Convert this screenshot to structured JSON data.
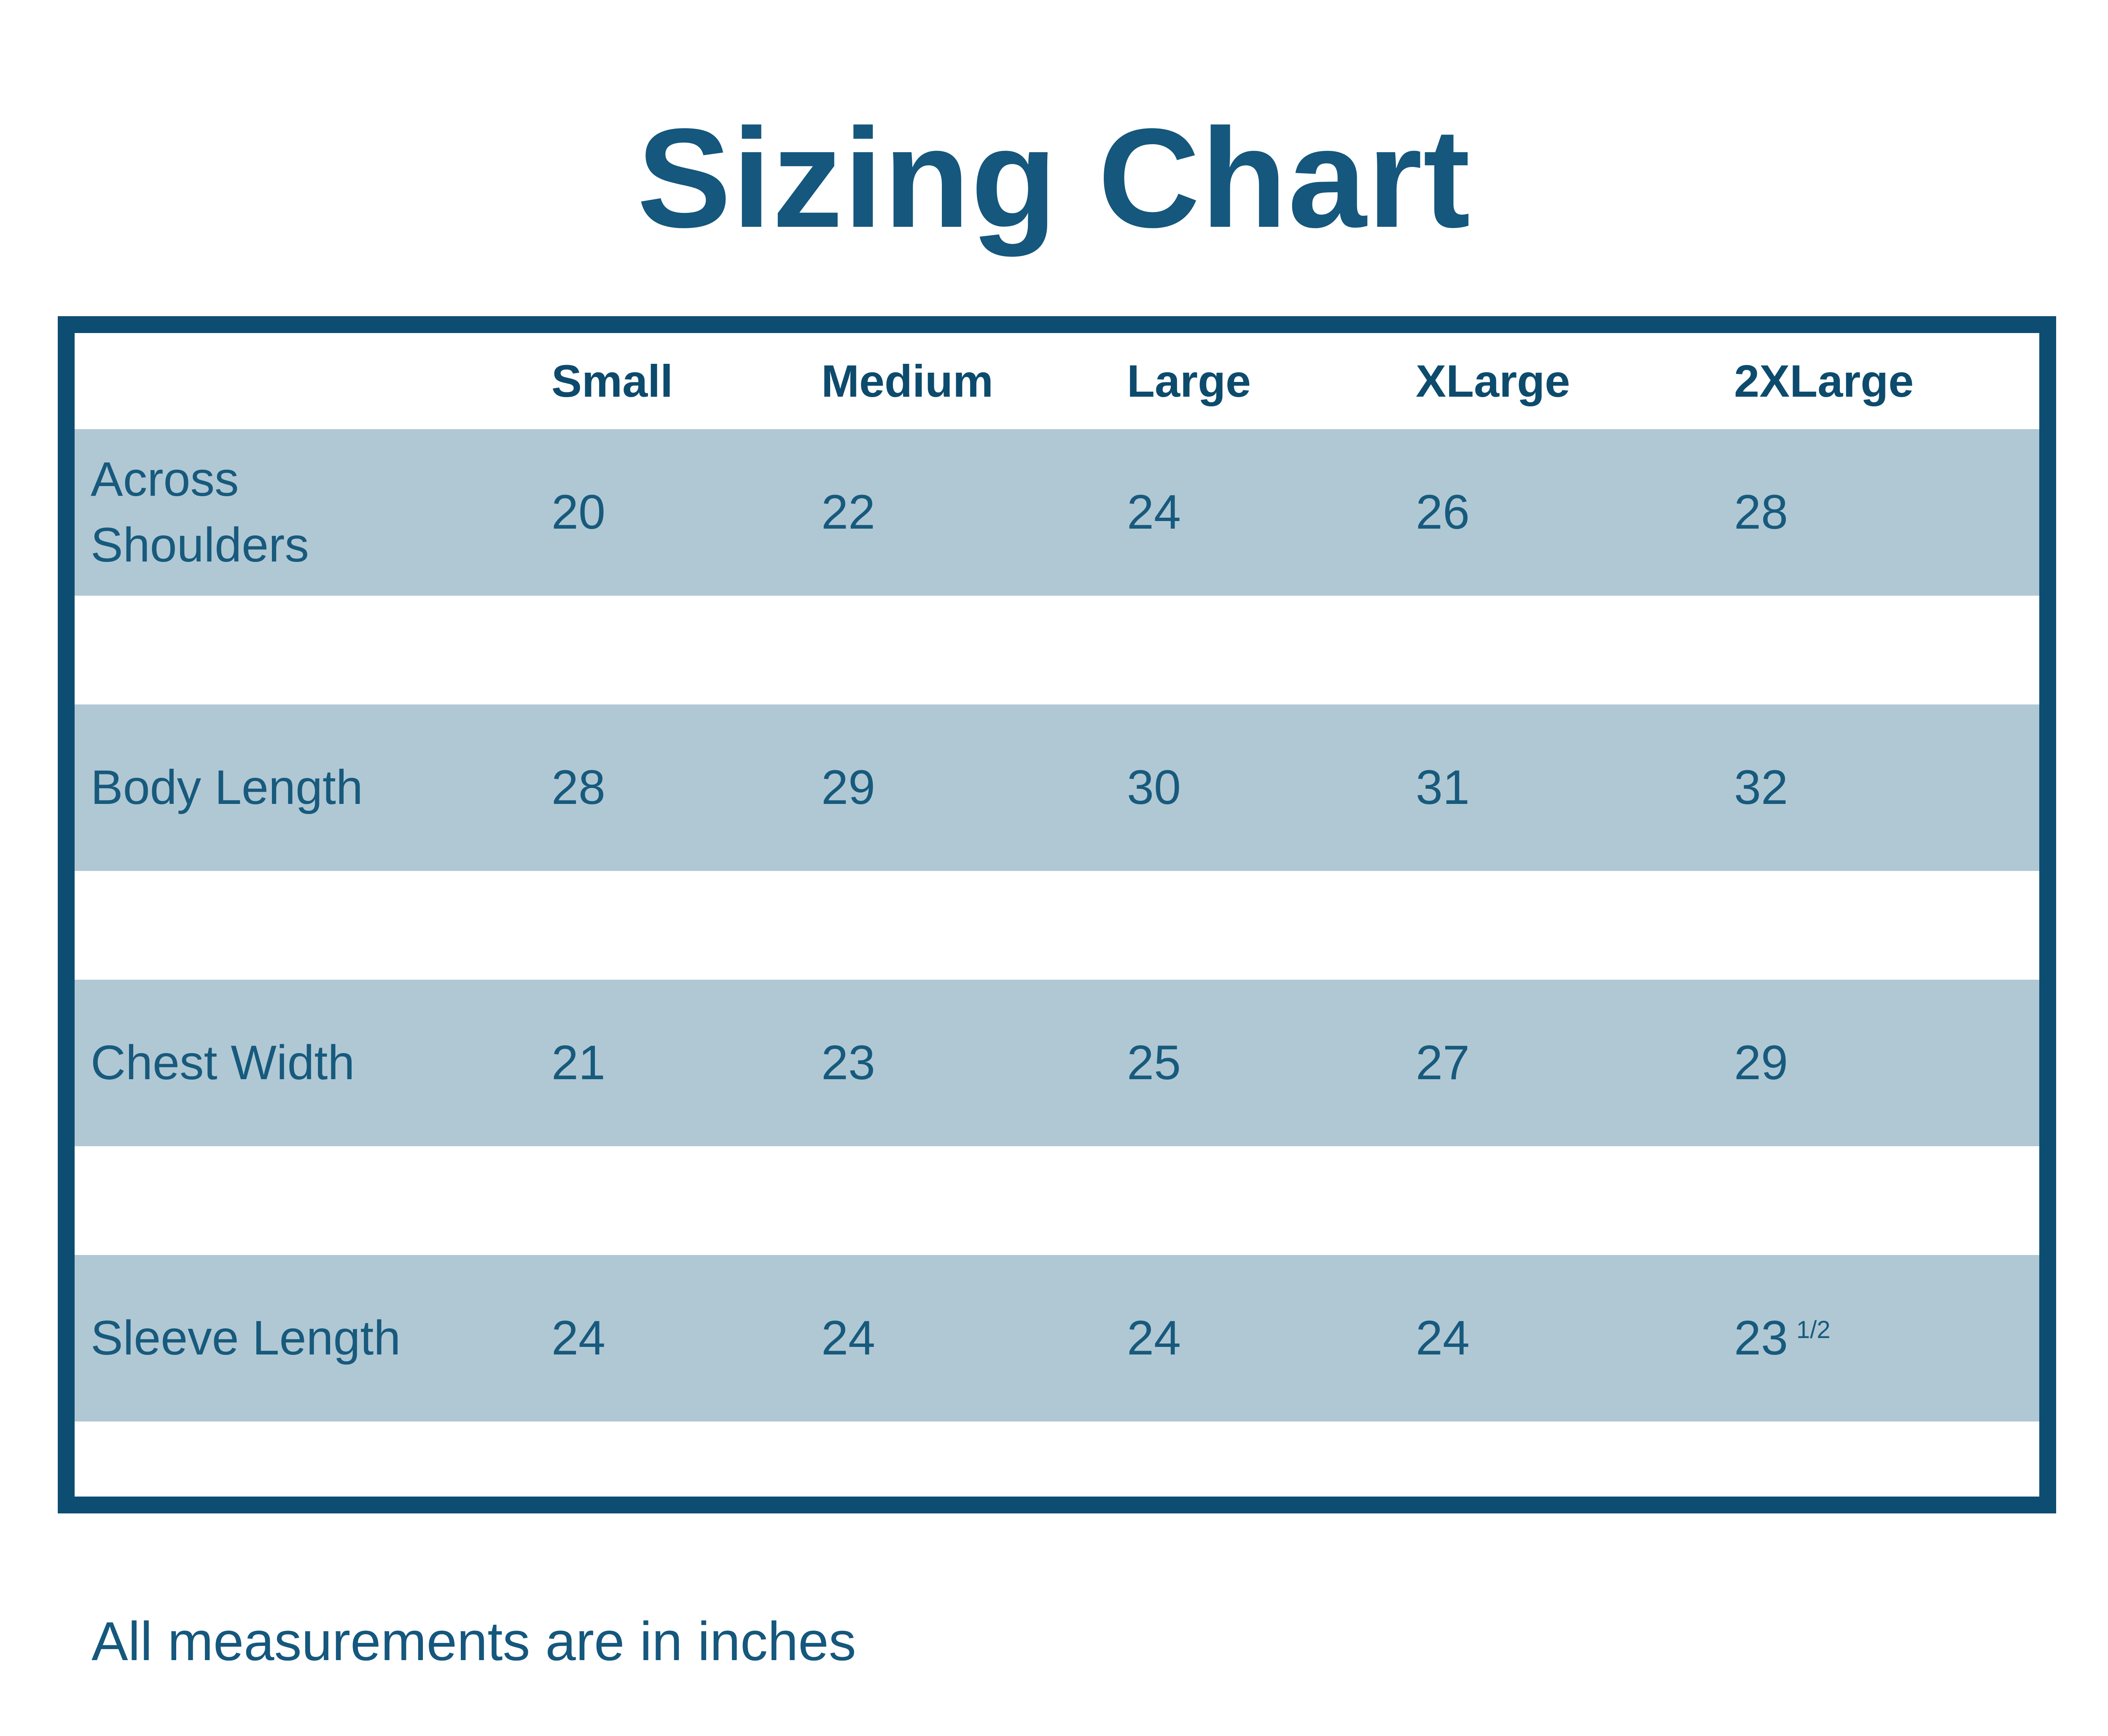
{
  "title": "Sizing Chart",
  "footer_note": "All measurements are in inches",
  "table": {
    "columns": [
      "Small",
      "Medium",
      "Large",
      "XLarge",
      "2XLarge"
    ],
    "rows": [
      {
        "label": "Across Shoulders",
        "values": [
          "20",
          "22",
          "24",
          "26",
          "28"
        ]
      },
      {
        "label": "Body Length",
        "values": [
          "28",
          "29",
          "30",
          "31",
          "32"
        ]
      },
      {
        "label": "Chest Width",
        "values": [
          "21",
          "23",
          "25",
          "27",
          "29"
        ]
      },
      {
        "label": "Sleeve Length",
        "values": [
          "24",
          "24",
          "24",
          "24",
          "23"
        ],
        "value_sup": "1/2"
      }
    ]
  },
  "chart_data": {
    "type": "table",
    "title": "Sizing Chart",
    "columns": [
      "Small",
      "Medium",
      "Large",
      "XLarge",
      "2XLarge"
    ],
    "rows": [
      {
        "label": "Across Shoulders",
        "values": [
          20,
          22,
          24,
          26,
          28
        ]
      },
      {
        "label": "Body Length",
        "values": [
          28,
          29,
          30,
          31,
          32
        ]
      },
      {
        "label": "Chest Width",
        "values": [
          21,
          23,
          25,
          27,
          29
        ]
      },
      {
        "label": "Sleeve Length",
        "values": [
          24,
          24,
          24,
          24,
          23.5
        ]
      }
    ],
    "note": "All measurements are in inches"
  },
  "colors": {
    "border": "#0d4d72",
    "band_background": "#b0c8d4",
    "heading_text": "#0d4b6d",
    "body_text": "#175a7d",
    "title_text": "#15577d"
  }
}
